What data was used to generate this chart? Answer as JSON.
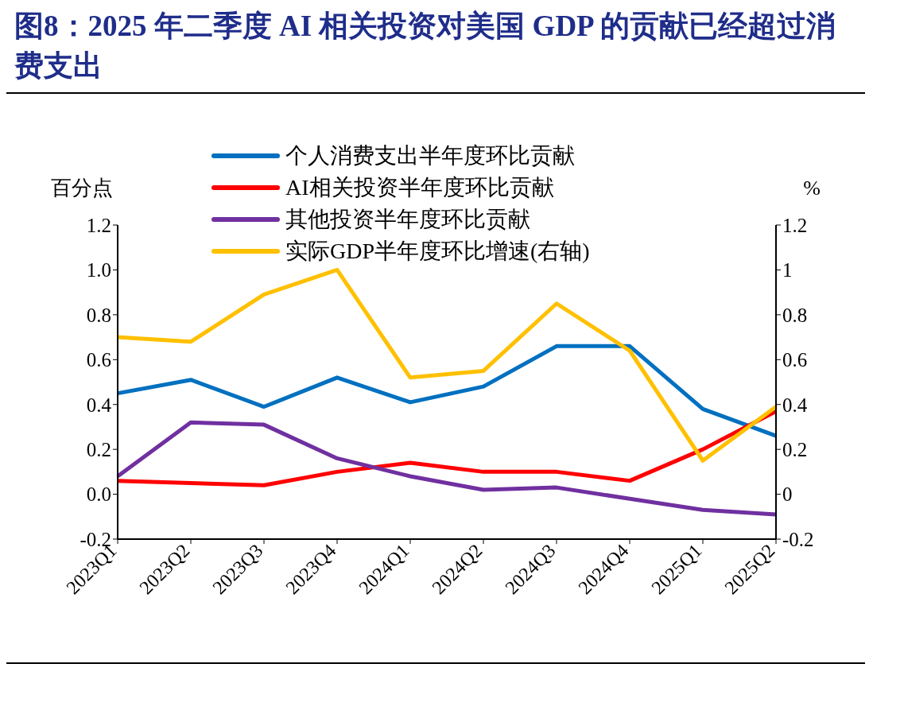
{
  "chart_data": {
    "type": "line",
    "title": "图8：2025 年二季度 AI 相关投资对美国 GDP 的贡献已经超过消费支出",
    "ylabel": "百分点",
    "y2label": "%",
    "categories": [
      "2023Q1",
      "2023Q2",
      "2023Q3",
      "2023Q4",
      "2024Q1",
      "2024Q2",
      "2024Q3",
      "2024Q4",
      "2025Q1",
      "2025Q2"
    ],
    "series": [
      {
        "name": "个人消费支出半年度环比贡献",
        "color": "#0070c0",
        "values": [
          0.45,
          0.51,
          0.39,
          0.52,
          0.41,
          0.48,
          0.66,
          0.66,
          0.38,
          0.26
        ]
      },
      {
        "name": "AI相关投资半年度环比贡献",
        "color": "#ff0000",
        "values": [
          0.06,
          0.05,
          0.04,
          0.1,
          0.14,
          0.1,
          0.1,
          0.06,
          0.2,
          0.37
        ]
      },
      {
        "name": "其他投资半年度环比贡献",
        "color": "#7030a0",
        "values": [
          0.08,
          0.32,
          0.31,
          0.16,
          0.08,
          0.02,
          0.03,
          -0.02,
          -0.07,
          -0.09
        ]
      },
      {
        "name": "实际GDP半年度环比增速(右轴)",
        "color": "#ffc000",
        "axis": "y2",
        "values": [
          0.7,
          0.68,
          0.89,
          1.0,
          0.52,
          0.55,
          0.85,
          0.64,
          0.15,
          0.39
        ]
      }
    ],
    "ylim": [
      -0.2,
      1.2
    ],
    "yticks": [
      {
        "value": -0.2,
        "label": "-0.2"
      },
      {
        "value": 0,
        "label": "0.0"
      },
      {
        "value": 0.2,
        "label": "0.2"
      },
      {
        "value": 0.4,
        "label": "0.4"
      },
      {
        "value": 0.6,
        "label": "0.6"
      },
      {
        "value": 0.8,
        "label": "0.8"
      },
      {
        "value": 1,
        "label": "1.0"
      },
      {
        "value": 1.2,
        "label": "1.2"
      }
    ],
    "y2lim": [
      -0.2,
      1.2
    ],
    "y2ticks": [
      {
        "value": -0.2,
        "label": "-0.2"
      },
      {
        "value": 0,
        "label": "0"
      },
      {
        "value": 0.2,
        "label": "0.2"
      },
      {
        "value": 0.4,
        "label": "0.4"
      },
      {
        "value": 0.6,
        "label": "0.6"
      },
      {
        "value": 0.8,
        "label": "0.8"
      },
      {
        "value": 1,
        "label": "1"
      },
      {
        "value": 1.2,
        "label": "1.2"
      }
    ],
    "grid": false,
    "legend": "top",
    "marker": "none",
    "line_style": "solid"
  }
}
